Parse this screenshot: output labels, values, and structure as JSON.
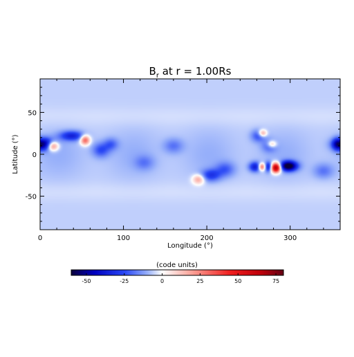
{
  "chart_data": {
    "type": "heatmap",
    "title": "B<sub>r</sub> at r = 1.00Rs",
    "title_parts": {
      "main": "B",
      "sub": "r",
      "rest": " at r = 1.00Rs"
    },
    "xlabel": "Longitude (°)",
    "ylabel": "Latitude (°)",
    "xlim": [
      0,
      360
    ],
    "ylim": [
      -90,
      90
    ],
    "xticks": [
      0,
      100,
      200,
      300
    ],
    "yticks": [
      -50,
      0,
      50
    ],
    "colorbar": {
      "label": "(code units)",
      "range": [
        -60,
        80
      ],
      "ticks": [
        -50,
        -25,
        0,
        25,
        50,
        75
      ],
      "colormap": "blue-white-red"
    },
    "background_value": -6,
    "regions": [
      {
        "lon": 5,
        "lat": 12,
        "value": -45,
        "sigma_lon": 9,
        "sigma_lat": 5
      },
      {
        "lon": 15,
        "lat": 10,
        "value": 45,
        "sigma_lon": 5,
        "sigma_lat": 4
      },
      {
        "lon": 38,
        "lat": 22,
        "value": -28,
        "sigma_lon": 10,
        "sigma_lat": 4
      },
      {
        "lon": 54,
        "lat": 17,
        "value": 40,
        "sigma_lon": 4,
        "sigma_lat": 4
      },
      {
        "lon": 73,
        "lat": 5,
        "value": -18,
        "sigma_lon": 7,
        "sigma_lat": 6
      },
      {
        "lon": 85,
        "lat": 12,
        "value": -14,
        "sigma_lon": 6,
        "sigma_lat": 5
      },
      {
        "lon": 125,
        "lat": -10,
        "value": -10,
        "sigma_lon": 8,
        "sigma_lat": 6
      },
      {
        "lon": 160,
        "lat": 10,
        "value": -12,
        "sigma_lon": 8,
        "sigma_lat": 6
      },
      {
        "lon": 190,
        "lat": -30,
        "value": 25,
        "sigma_lon": 5,
        "sigma_lat": 4
      },
      {
        "lon": 205,
        "lat": -25,
        "value": -22,
        "sigma_lon": 8,
        "sigma_lat": 5
      },
      {
        "lon": 222,
        "lat": -18,
        "value": -15,
        "sigma_lon": 8,
        "sigma_lat": 6
      },
      {
        "lon": 262,
        "lat": 22,
        "value": -18,
        "sigma_lon": 6,
        "sigma_lat": 5
      },
      {
        "lon": 267,
        "lat": 25,
        "value": 30,
        "sigma_lon": 3.5,
        "sigma_lat": 3
      },
      {
        "lon": 275,
        "lat": 10,
        "value": -15,
        "sigma_lon": 6,
        "sigma_lat": 5
      },
      {
        "lon": 278,
        "lat": 12,
        "value": 25,
        "sigma_lon": 4,
        "sigma_lat": 3
      },
      {
        "lon": 258,
        "lat": -15,
        "value": -30,
        "sigma_lon": 5,
        "sigma_lat": 4
      },
      {
        "lon": 266,
        "lat": -15,
        "value": 40,
        "sigma_lon": 3,
        "sigma_lat": 3
      },
      {
        "lon": 274,
        "lat": -15,
        "value": -30,
        "sigma_lon": 3,
        "sigma_lat": 4
      },
      {
        "lon": 283,
        "lat": -16,
        "value": 80,
        "sigma_lon": 4,
        "sigma_lat": 4
      },
      {
        "lon": 298,
        "lat": -14,
        "value": -60,
        "sigma_lon": 7,
        "sigma_lat": 4
      },
      {
        "lon": 340,
        "lat": -20,
        "value": -12,
        "sigma_lon": 8,
        "sigma_lat": 6
      },
      {
        "lon": 356,
        "lat": 12,
        "value": -20,
        "sigma_lon": 4,
        "sigma_lat": 5
      }
    ]
  }
}
